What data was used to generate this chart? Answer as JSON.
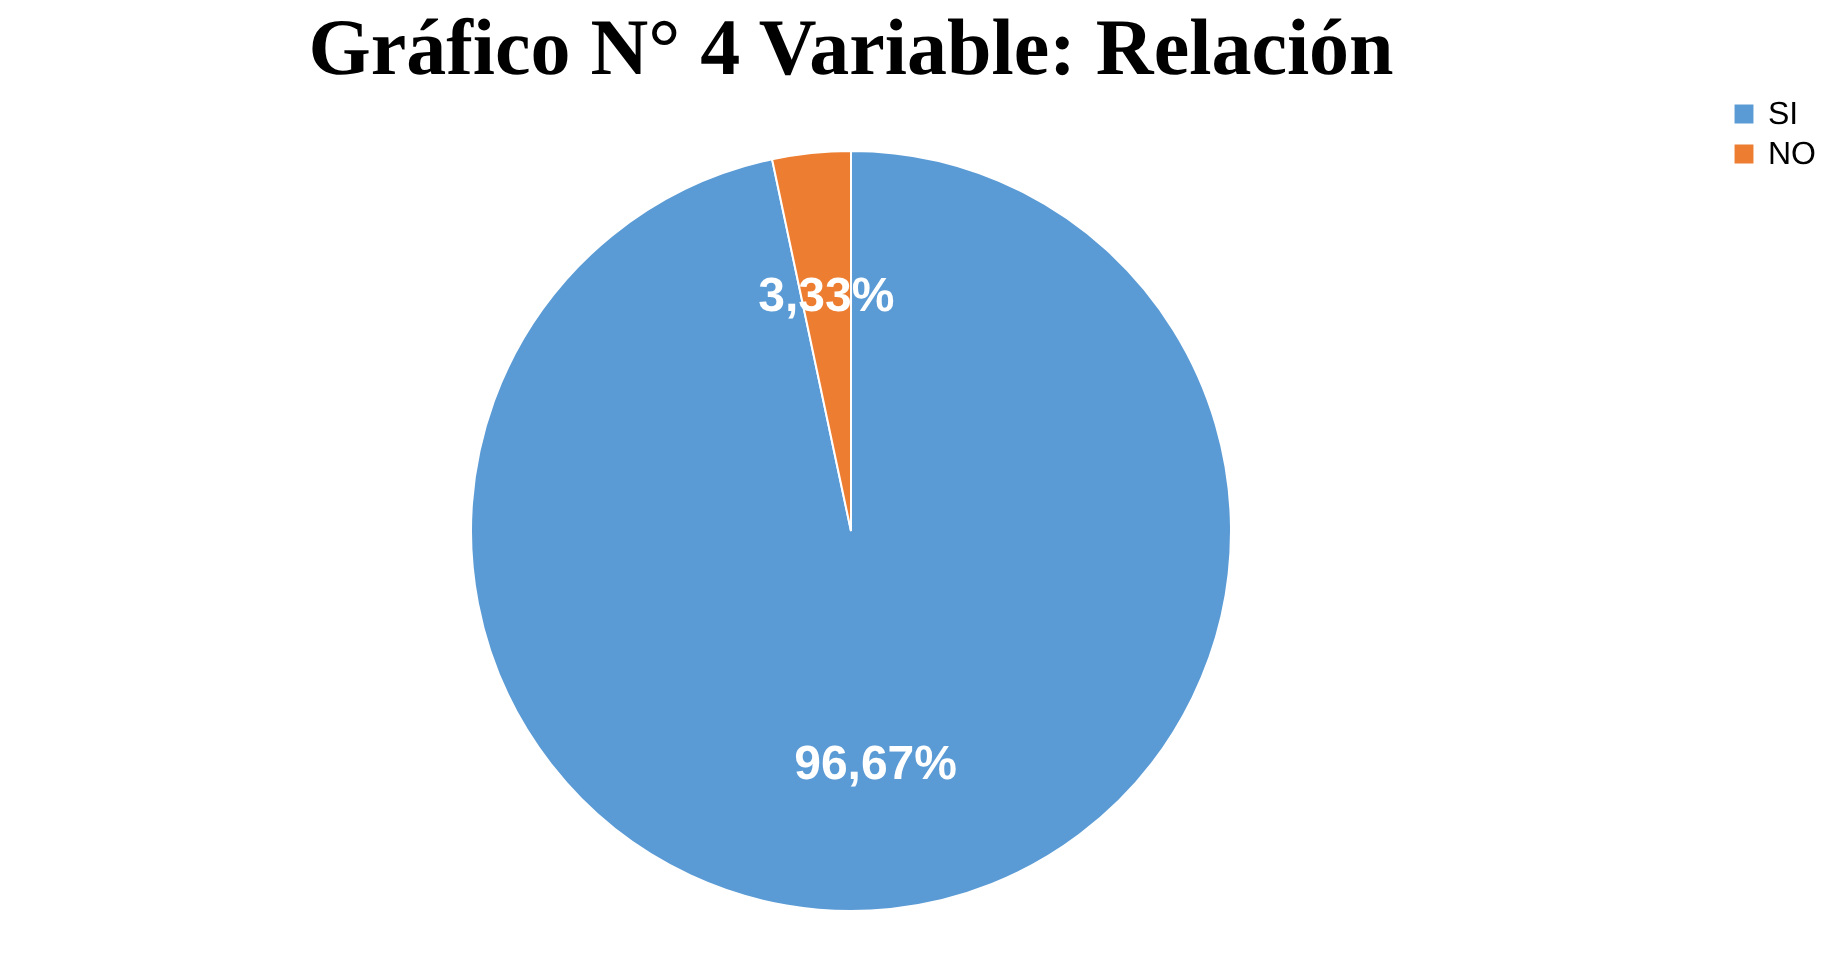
{
  "chart_data": {
    "type": "pie",
    "title": "Gráfico N° 4 Variable: Relación",
    "categories": [
      "SI",
      "NO"
    ],
    "values": [
      96.67,
      3.33
    ],
    "colors": [
      "#5b9bd5",
      "#ed7d31"
    ],
    "value_labels": [
      "96,67%",
      "3,33%"
    ],
    "legend": "right"
  }
}
